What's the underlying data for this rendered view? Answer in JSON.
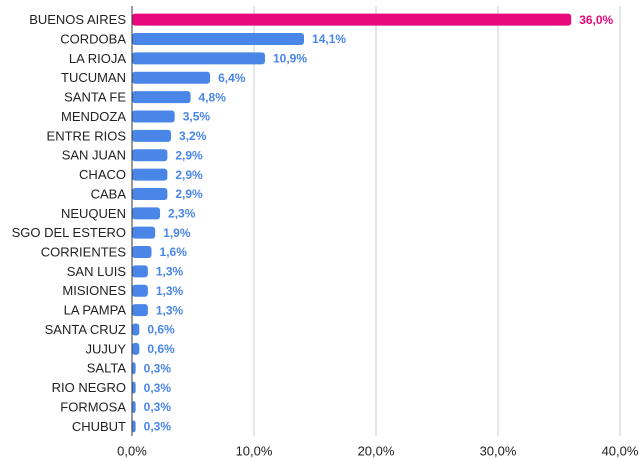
{
  "chart_data": {
    "type": "hbar",
    "categories": [
      "BUENOS AIRES",
      "CORDOBA",
      "LA RIOJA",
      "TUCUMAN",
      "SANTA FE",
      "MENDOZA",
      "ENTRE RIOS",
      "SAN JUAN",
      "CHACO",
      "CABA",
      "NEUQUEN",
      "SGO DEL ESTERO",
      "CORRIENTES",
      "SAN LUIS",
      "MISIONES",
      "LA PAMPA",
      "SANTA CRUZ",
      "JUJUY",
      "SALTA",
      "RIO NEGRO",
      "FORMOSA",
      "CHUBUT"
    ],
    "values": [
      36.0,
      14.1,
      10.9,
      6.4,
      4.8,
      3.5,
      3.2,
      2.9,
      2.9,
      2.9,
      2.3,
      1.9,
      1.6,
      1.3,
      1.3,
      1.3,
      0.6,
      0.6,
      0.3,
      0.3,
      0.3,
      0.3
    ],
    "value_labels": [
      "36,0%",
      "14,1%",
      "10,9%",
      "6,4%",
      "4,8%",
      "3,5%",
      "3,2%",
      "2,9%",
      "2,9%",
      "2,9%",
      "2,3%",
      "1,9%",
      "1,6%",
      "1,3%",
      "1,3%",
      "1,3%",
      "0,6%",
      "0,6%",
      "0,3%",
      "0,3%",
      "0,3%",
      "0,3%"
    ],
    "colors": [
      "#e8097c",
      "#4a86e8",
      "#4a86e8",
      "#4a86e8",
      "#4a86e8",
      "#4a86e8",
      "#4a86e8",
      "#4a86e8",
      "#4a86e8",
      "#4a86e8",
      "#4a86e8",
      "#4a86e8",
      "#4a86e8",
      "#4a86e8",
      "#4a86e8",
      "#4a86e8",
      "#4a86e8",
      "#4a86e8",
      "#4a86e8",
      "#4a86e8",
      "#4a86e8",
      "#4a86e8"
    ],
    "xlim": [
      0,
      40
    ],
    "xticks": [
      {
        "value": 0,
        "label": "0,0%"
      },
      {
        "value": 10,
        "label": "10,0%"
      },
      {
        "value": 20,
        "label": "20,0%"
      },
      {
        "value": 30,
        "label": "30,0%"
      },
      {
        "value": 40,
        "label": "40,0%"
      }
    ],
    "grid": true
  }
}
